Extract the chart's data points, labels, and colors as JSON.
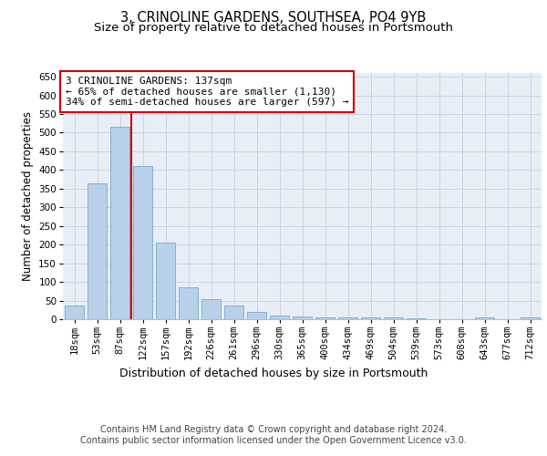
{
  "title": "3, CRINOLINE GARDENS, SOUTHSEA, PO4 9YB",
  "subtitle": "Size of property relative to detached houses in Portsmouth",
  "xlabel": "Distribution of detached houses by size in Portsmouth",
  "ylabel": "Number of detached properties",
  "categories": [
    "18sqm",
    "53sqm",
    "87sqm",
    "122sqm",
    "157sqm",
    "192sqm",
    "226sqm",
    "261sqm",
    "296sqm",
    "330sqm",
    "365sqm",
    "400sqm",
    "434sqm",
    "469sqm",
    "504sqm",
    "539sqm",
    "573sqm",
    "608sqm",
    "643sqm",
    "677sqm",
    "712sqm"
  ],
  "values": [
    37,
    365,
    515,
    410,
    205,
    85,
    55,
    37,
    20,
    10,
    8,
    6,
    5,
    5,
    4,
    3,
    1,
    1,
    5,
    1,
    5
  ],
  "bar_color": "#b8d0e8",
  "bar_edge_color": "#7aaac8",
  "grid_color": "#c8d4e4",
  "background_color": "#e8eef6",
  "vline_color": "#cc0000",
  "vline_x_index": 2.5,
  "annotation_text": "3 CRINOLINE GARDENS: 137sqm\n← 65% of detached houses are smaller (1,130)\n34% of semi-detached houses are larger (597) →",
  "annotation_box_edgecolor": "#cc0000",
  "ylim": [
    0,
    660
  ],
  "yticks": [
    0,
    50,
    100,
    150,
    200,
    250,
    300,
    350,
    400,
    450,
    500,
    550,
    600,
    650
  ],
  "footer1": "Contains HM Land Registry data © Crown copyright and database right 2024.",
  "footer2": "Contains public sector information licensed under the Open Government Licence v3.0.",
  "title_fontsize": 10.5,
  "subtitle_fontsize": 9.5,
  "xlabel_fontsize": 9,
  "ylabel_fontsize": 8.5,
  "tick_fontsize": 7.5,
  "annotation_fontsize": 8,
  "footer_fontsize": 7
}
